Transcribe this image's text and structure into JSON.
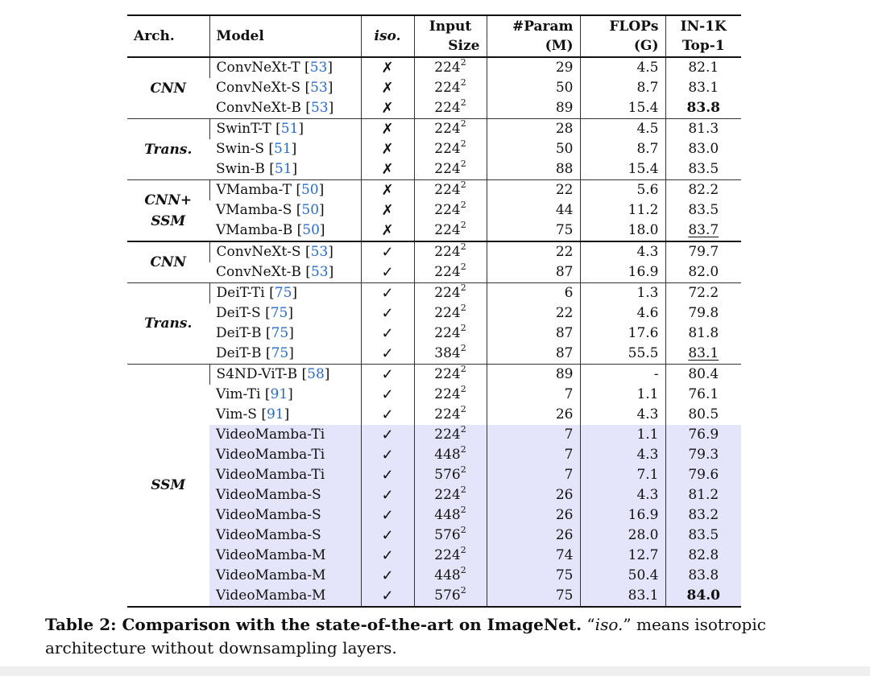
{
  "headers": {
    "arch": "Arch.",
    "model": "Model",
    "iso": "iso.",
    "input_line1": "Input",
    "input_line2": "Size",
    "param_line1": "#Param",
    "param_line2": "(M)",
    "flops_line1": "FLOPs",
    "flops_line2": "(G)",
    "top1_line1": "IN-1K",
    "top1_line2": "Top-1"
  },
  "groups": [
    {
      "arch": [
        "CNN"
      ],
      "rows": [
        {
          "model": "ConvNeXt-T",
          "ref": "53",
          "iso": "✗",
          "res": "224",
          "params": "29",
          "flops": "4.5",
          "top1": "82.1"
        },
        {
          "model": "ConvNeXt-S",
          "ref": "53",
          "iso": "✗",
          "res": "224",
          "params": "50",
          "flops": "8.7",
          "top1": "83.1"
        },
        {
          "model": "ConvNeXt-B",
          "ref": "53",
          "iso": "✗",
          "res": "224",
          "params": "89",
          "flops": "15.4",
          "top1": "83.8",
          "bold": true
        }
      ]
    },
    {
      "arch": [
        "Trans."
      ],
      "rows": [
        {
          "model": "SwinT-T",
          "ref": "51",
          "iso": "✗",
          "res": "224",
          "params": "28",
          "flops": "4.5",
          "top1": "81.3"
        },
        {
          "model": "Swin-S",
          "ref": "51",
          "iso": "✗",
          "res": "224",
          "params": "50",
          "flops": "8.7",
          "top1": "83.0"
        },
        {
          "model": "Swin-B",
          "ref": "51",
          "iso": "✗",
          "res": "224",
          "params": "88",
          "flops": "15.4",
          "top1": "83.5"
        }
      ]
    },
    {
      "arch": [
        "CNN+",
        "SSM"
      ],
      "rows": [
        {
          "model": "VMamba-T",
          "ref": "50",
          "iso": "✗",
          "res": "224",
          "params": "22",
          "flops": "5.6",
          "top1": "82.2"
        },
        {
          "model": "VMamba-S",
          "ref": "50",
          "iso": "✗",
          "res": "224",
          "params": "44",
          "flops": "11.2",
          "top1": "83.5"
        },
        {
          "model": "VMamba-B",
          "ref": "50",
          "iso": "✗",
          "res": "224",
          "params": "75",
          "flops": "18.0",
          "top1": "83.7",
          "underline": true
        }
      ]
    },
    {
      "arch": [
        "CNN"
      ],
      "thick": true,
      "rows": [
        {
          "model": "ConvNeXt-S",
          "ref": "53",
          "iso": "✓",
          "res": "224",
          "params": "22",
          "flops": "4.3",
          "top1": "79.7"
        },
        {
          "model": "ConvNeXt-B",
          "ref": "53",
          "iso": "✓",
          "res": "224",
          "params": "87",
          "flops": "16.9",
          "top1": "82.0"
        }
      ]
    },
    {
      "arch": [
        "Trans."
      ],
      "rows": [
        {
          "model": "DeiT-Ti",
          "ref": "75",
          "iso": "✓",
          "res": "224",
          "params": "6",
          "flops": "1.3",
          "top1": "72.2"
        },
        {
          "model": "DeiT-S",
          "ref": "75",
          "iso": "✓",
          "res": "224",
          "params": "22",
          "flops": "4.6",
          "top1": "79.8"
        },
        {
          "model": "DeiT-B",
          "ref": "75",
          "iso": "✓",
          "res": "224",
          "params": "87",
          "flops": "17.6",
          "top1": "81.8"
        },
        {
          "model": "DeiT-B",
          "ref": "75",
          "iso": "✓",
          "res": "384",
          "params": "87",
          "flops": "55.5",
          "top1": "83.1",
          "underline": true
        }
      ]
    },
    {
      "arch": [
        "SSM"
      ],
      "rows": [
        {
          "model": "S4ND-ViT-B",
          "ref": "58",
          "iso": "✓",
          "res": "224",
          "params": "89",
          "flops": "-",
          "top1": "80.4"
        },
        {
          "model": "Vim-Ti",
          "ref": "91",
          "iso": "✓",
          "res": "224",
          "params": "7",
          "flops": "1.1",
          "top1": "76.1"
        },
        {
          "model": "Vim-S",
          "ref": "91",
          "iso": "✓",
          "res": "224",
          "params": "26",
          "flops": "4.3",
          "top1": "80.5"
        },
        {
          "model": "VideoMamba-Ti",
          "iso": "✓",
          "res": "224",
          "params": "7",
          "flops": "1.1",
          "top1": "76.9",
          "highlight": true
        },
        {
          "model": "VideoMamba-Ti",
          "iso": "✓",
          "res": "448",
          "params": "7",
          "flops": "4.3",
          "top1": "79.3",
          "highlight": true
        },
        {
          "model": "VideoMamba-Ti",
          "iso": "✓",
          "res": "576",
          "params": "7",
          "flops": "7.1",
          "top1": "79.6",
          "highlight": true
        },
        {
          "model": "VideoMamba-S",
          "iso": "✓",
          "res": "224",
          "params": "26",
          "flops": "4.3",
          "top1": "81.2",
          "highlight": true
        },
        {
          "model": "VideoMamba-S",
          "iso": "✓",
          "res": "448",
          "params": "26",
          "flops": "16.9",
          "top1": "83.2",
          "highlight": true
        },
        {
          "model": "VideoMamba-S",
          "iso": "✓",
          "res": "576",
          "params": "26",
          "flops": "28.0",
          "top1": "83.5",
          "highlight": true
        },
        {
          "model": "VideoMamba-M",
          "iso": "✓",
          "res": "224",
          "params": "74",
          "flops": "12.7",
          "top1": "82.8",
          "highlight": true
        },
        {
          "model": "VideoMamba-M",
          "iso": "✓",
          "res": "448",
          "params": "75",
          "flops": "50.4",
          "top1": "83.8",
          "highlight": true
        },
        {
          "model": "VideoMamba-M",
          "iso": "✓",
          "res": "576",
          "params": "75",
          "flops": "83.1",
          "top1": "84.0",
          "highlight": true,
          "bold": true
        }
      ]
    }
  ],
  "superscript": "2",
  "caption": {
    "label": "Table 2: Comparison with the state-of-the-art on ImageNet.",
    "q_open": " “",
    "iso_word": "iso.",
    "q_close": "” means isotropic architecture without downsampling layers."
  },
  "colors": {
    "highlight": "#e4e5fa",
    "citation": "#2a6cc9"
  }
}
